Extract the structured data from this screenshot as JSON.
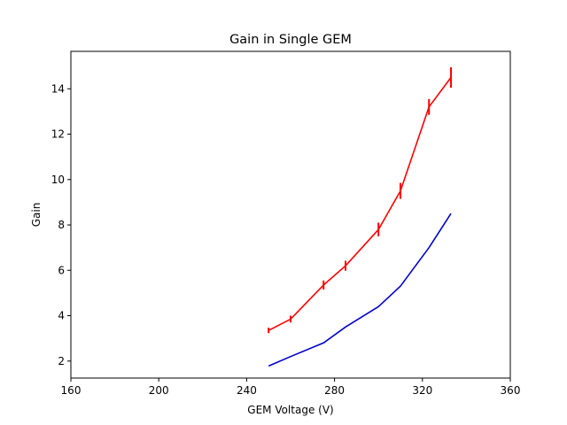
{
  "chart_data": {
    "type": "line",
    "title": "Gain in Single GEM",
    "xlabel": "GEM Voltage (V)",
    "ylabel": "Gain",
    "xlim": [
      160,
      360
    ],
    "ylim": [
      1.25,
      15.65
    ],
    "x_ticks": [
      160,
      200,
      240,
      280,
      320,
      360
    ],
    "y_ticks": [
      2,
      4,
      6,
      8,
      10,
      12,
      14
    ],
    "grid": false,
    "series": [
      {
        "color": "#ff0000",
        "x": [
          250,
          260,
          275,
          285,
          300,
          310,
          323,
          333
        ],
        "y": [
          3.35,
          3.85,
          5.35,
          6.2,
          7.8,
          9.5,
          13.2,
          14.5
        ],
        "yerr": [
          0.12,
          0.15,
          0.2,
          0.22,
          0.3,
          0.35,
          0.35,
          0.45
        ]
      },
      {
        "color": "#0000cc",
        "x": [
          250,
          260,
          275,
          285,
          300,
          310,
          323,
          333
        ],
        "y": [
          1.78,
          2.2,
          2.8,
          3.5,
          4.4,
          5.3,
          7.0,
          8.5
        ]
      }
    ]
  }
}
